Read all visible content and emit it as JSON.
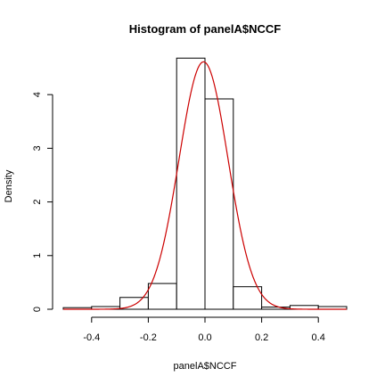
{
  "chart_data": {
    "type": "bar",
    "title": "Histogram of panelA$NCCF",
    "xlabel": "panelA$NCCF",
    "ylabel": "Density",
    "xlim": [
      -0.5,
      0.5
    ],
    "ylim": [
      0,
      4.8
    ],
    "x_ticks": [
      -0.4,
      -0.2,
      0.0,
      0.2,
      0.4
    ],
    "x_tick_labels": [
      "-0.4",
      "-0.2",
      "0.0",
      "0.2",
      "0.4"
    ],
    "y_ticks": [
      0,
      1,
      2,
      3,
      4
    ],
    "y_tick_labels": [
      "0",
      "1",
      "2",
      "3",
      "4"
    ],
    "bins": [
      {
        "start": -0.5,
        "end": -0.4,
        "density": 0.03
      },
      {
        "start": -0.4,
        "end": -0.3,
        "density": 0.05
      },
      {
        "start": -0.3,
        "end": -0.2,
        "density": 0.22
      },
      {
        "start": -0.2,
        "end": -0.1,
        "density": 0.48
      },
      {
        "start": -0.1,
        "end": 0.0,
        "density": 4.68
      },
      {
        "start": 0.0,
        "end": 0.1,
        "density": 3.92
      },
      {
        "start": 0.1,
        "end": 0.2,
        "density": 0.42
      },
      {
        "start": 0.2,
        "end": 0.3,
        "density": 0.04
      },
      {
        "start": 0.3,
        "end": 0.4,
        "density": 0.07
      },
      {
        "start": 0.4,
        "end": 0.5,
        "density": 0.05
      }
    ],
    "density_curve": {
      "color": "#cc0000",
      "mean": -0.005,
      "sd": 0.0865
    },
    "bar_fill": "#ffffff",
    "bar_stroke": "#000000",
    "grid": false
  }
}
